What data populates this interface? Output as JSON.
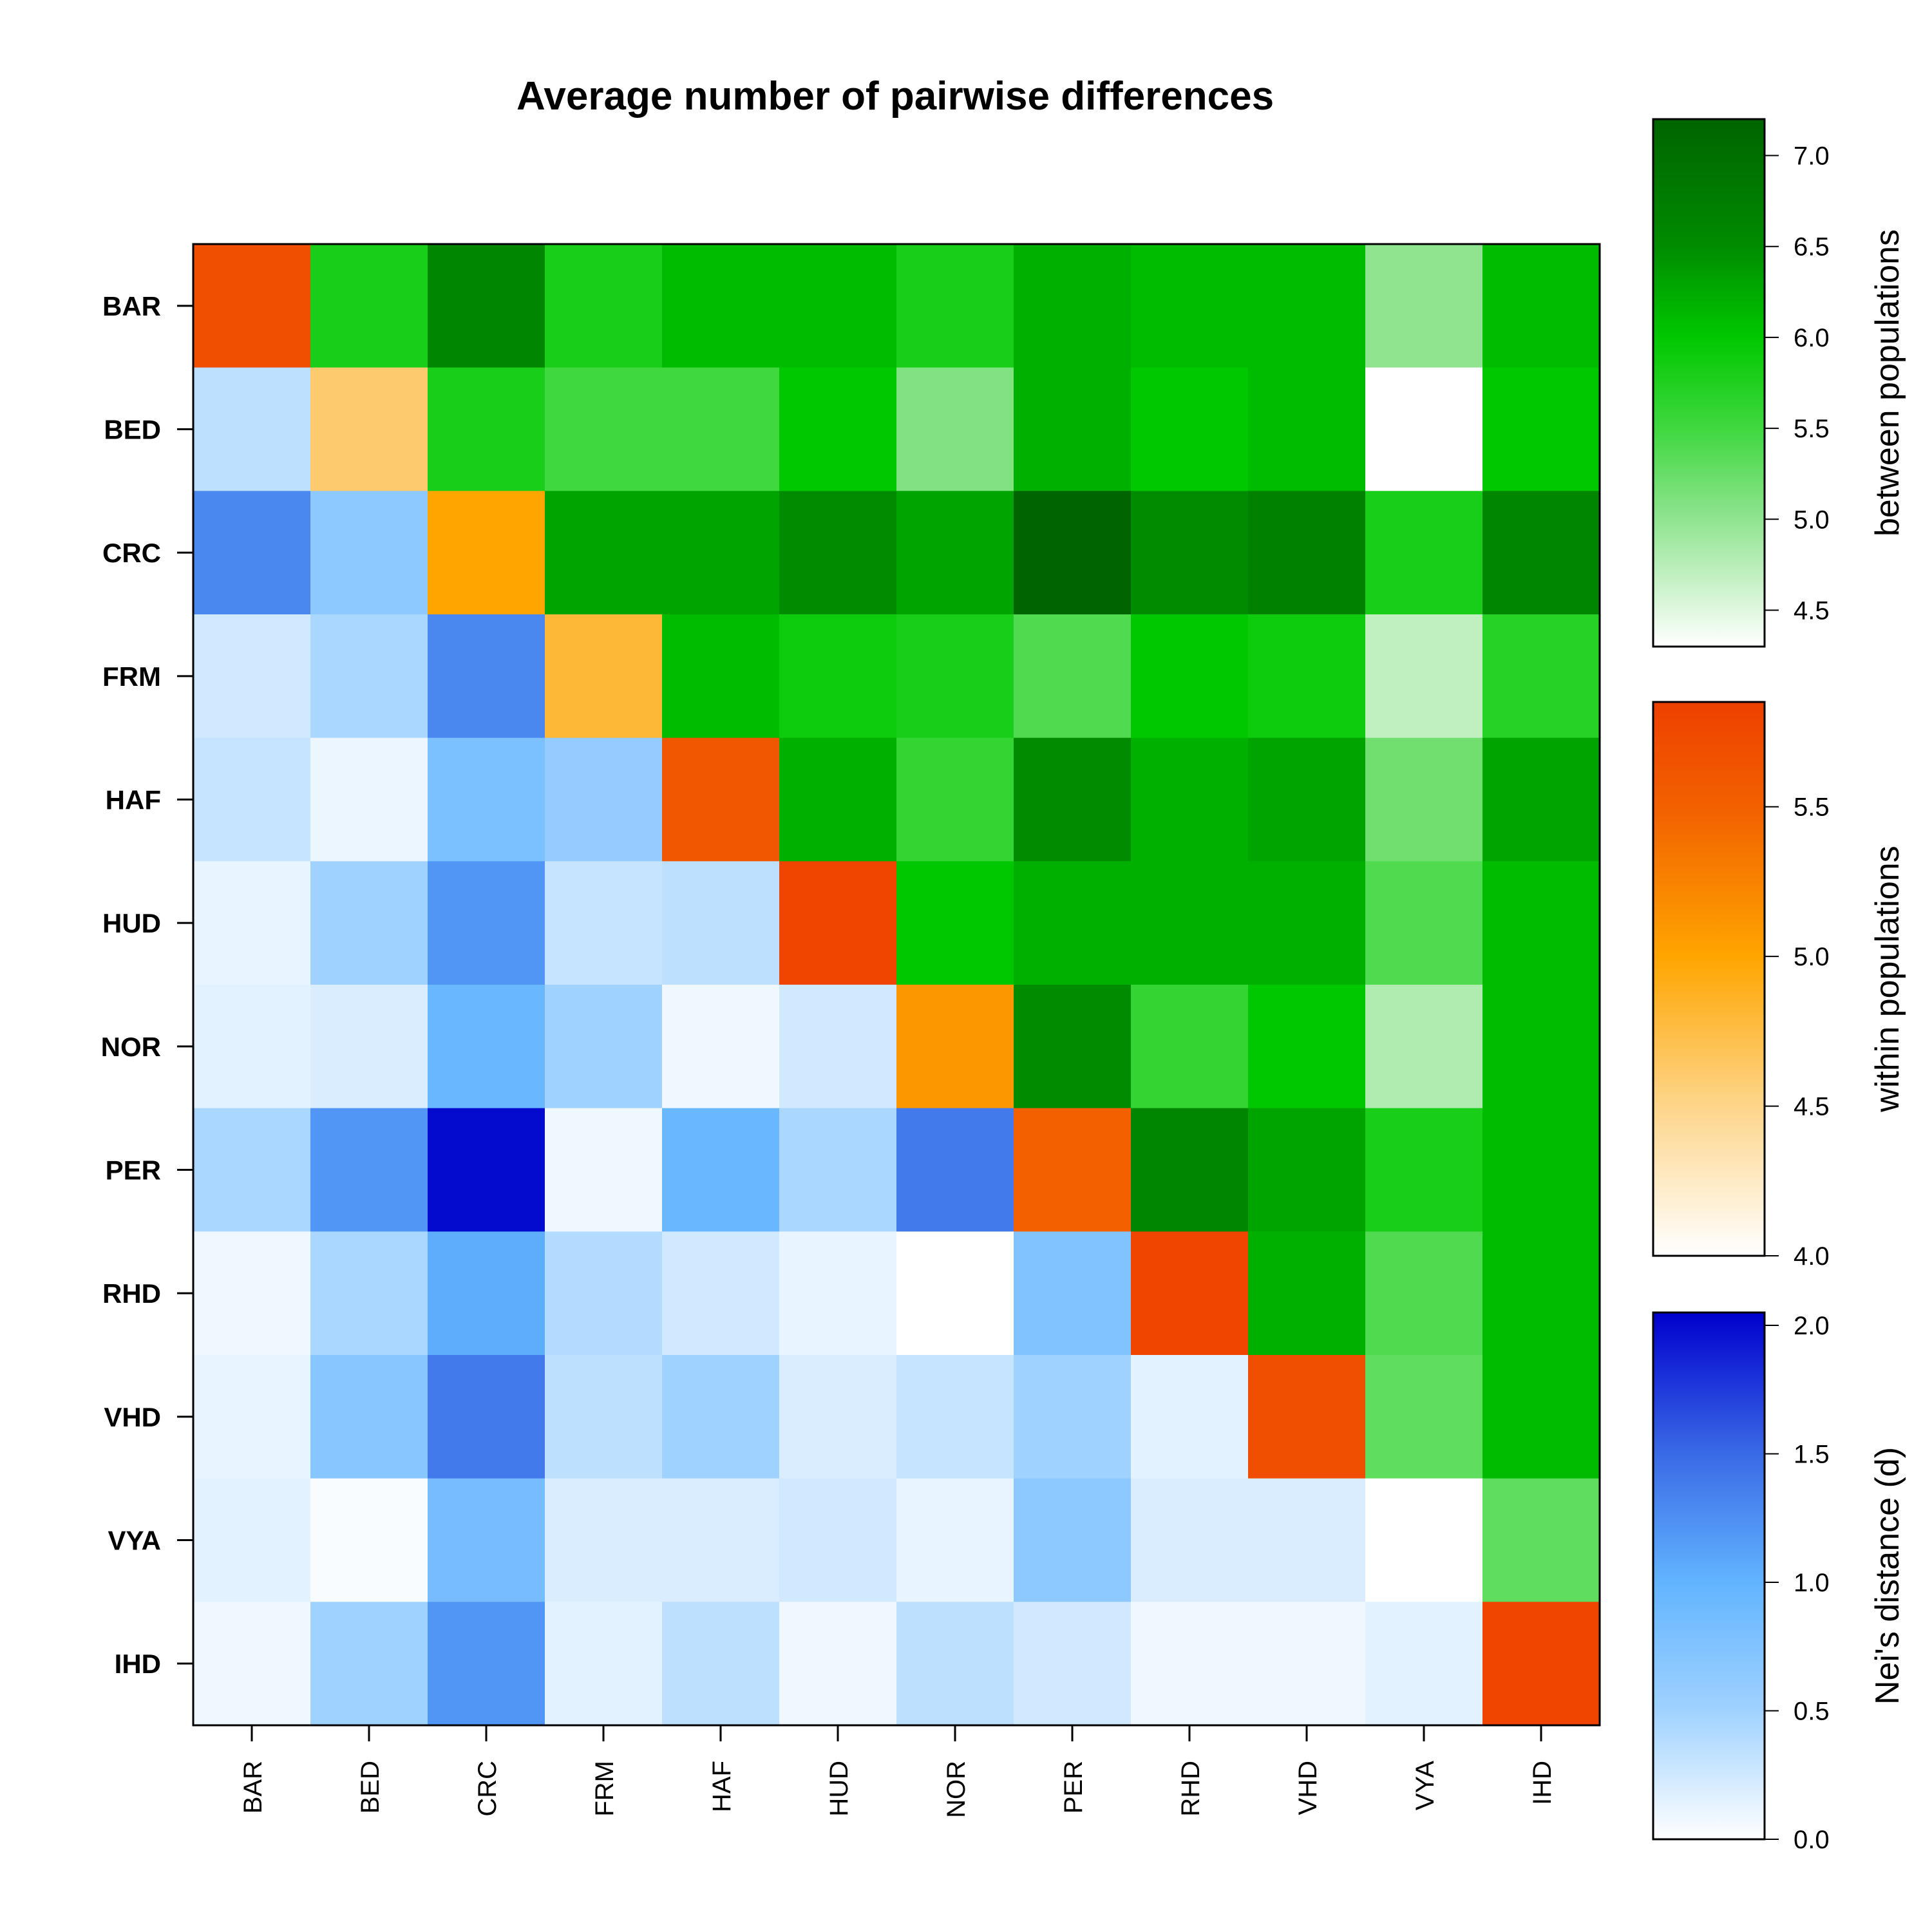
{
  "chart_data": {
    "type": "heatmap",
    "title": "Average number of pairwise differences",
    "row_labels": [
      "BAR",
      "BED",
      "CRC",
      "FRM",
      "HAF",
      "HUD",
      "NOR",
      "PER",
      "RHD",
      "VHD",
      "VYA",
      "IHD"
    ],
    "col_labels": [
      "BAR",
      "BED",
      "CRC",
      "FRM",
      "HAF",
      "HUD",
      "NOR",
      "PER",
      "RHD",
      "VHD",
      "VYA",
      "IHD"
    ],
    "cell_layout": "upper triangle = between populations, diagonal = within populations, lower triangle = Nei's distance (d)",
    "matrix": [
      [
        5.7,
        5.8,
        6.6,
        5.8,
        6.1,
        6.1,
        5.8,
        6.2,
        6.1,
        6.1,
        5.0,
        6.1
      ],
      [
        0.35,
        4.6,
        5.8,
        5.5,
        5.5,
        6.0,
        5.1,
        6.2,
        6.0,
        6.1,
        4.3,
        6.0
      ],
      [
        1.3,
        0.65,
        5.0,
        6.3,
        6.3,
        6.5,
        6.3,
        7.2,
        6.5,
        6.7,
        5.8,
        6.6
      ],
      [
        0.25,
        0.45,
        1.3,
        4.8,
        6.1,
        5.9,
        5.8,
        5.4,
        6.0,
        5.9,
        4.7,
        5.7
      ],
      [
        0.3,
        0.1,
        0.8,
        0.6,
        5.6,
        6.2,
        5.6,
        6.5,
        6.2,
        6.3,
        5.2,
        6.3
      ],
      [
        0.12,
        0.5,
        1.2,
        0.3,
        0.35,
        5.8,
        6.0,
        6.2,
        6.2,
        6.2,
        5.4,
        6.1
      ],
      [
        0.15,
        0.2,
        0.95,
        0.5,
        0.08,
        0.25,
        5.1,
        6.5,
        5.6,
        6.0,
        4.8,
        6.1
      ],
      [
        0.45,
        1.2,
        2.0,
        0.08,
        0.95,
        0.45,
        1.4,
        5.5,
        6.6,
        6.3,
        5.8,
        6.1
      ],
      [
        0.08,
        0.45,
        1.05,
        0.4,
        0.25,
        0.12,
        0.0,
        0.75,
        5.8,
        6.2,
        5.4,
        6.1
      ],
      [
        0.12,
        0.7,
        1.4,
        0.35,
        0.5,
        0.2,
        0.3,
        0.5,
        0.15,
        5.7,
        5.3,
        6.1
      ],
      [
        0.15,
        0.03,
        0.85,
        0.2,
        0.2,
        0.25,
        0.12,
        0.65,
        0.2,
        0.2,
        4.0,
        5.3
      ],
      [
        0.08,
        0.5,
        1.2,
        0.15,
        0.35,
        0.08,
        0.35,
        0.25,
        0.08,
        0.08,
        0.15,
        5.8
      ]
    ],
    "legends": [
      {
        "label": "between populations",
        "range": [
          4.3,
          7.2
        ],
        "ticks": [
          "7.0",
          "6.5",
          "6.0",
          "5.5",
          "5.0",
          "4.5"
        ],
        "tick_values": [
          7.0,
          6.5,
          6.0,
          5.5,
          5.0,
          4.5
        ],
        "colors": [
          [
            4.3,
            "#ffffff"
          ],
          [
            5.0,
            "#90e490"
          ],
          [
            5.5,
            "#3fd83f"
          ],
          [
            6.0,
            "#00c800"
          ],
          [
            6.5,
            "#008c00"
          ],
          [
            7.2,
            "#006400"
          ]
        ]
      },
      {
        "label": "within populations",
        "range": [
          4.0,
          5.85
        ],
        "ticks": [
          "5.5",
          "5.0",
          "4.5",
          "4.0"
        ],
        "tick_values": [
          5.5,
          5.0,
          4.5,
          4.0
        ],
        "colors": [
          [
            4.0,
            "#ffffff"
          ],
          [
            4.5,
            "#fdd58a"
          ],
          [
            5.0,
            "#ffa500"
          ],
          [
            5.5,
            "#f26000"
          ],
          [
            5.85,
            "#ee4000"
          ]
        ]
      },
      {
        "label": "Nei's distance (d)",
        "range": [
          0.0,
          2.05
        ],
        "ticks": [
          "2.0",
          "1.5",
          "1.0",
          "0.5",
          "0.0"
        ],
        "tick_values": [
          2.0,
          1.5,
          1.0,
          0.5,
          0.0
        ],
        "colors": [
          [
            0.0,
            "#ffffff"
          ],
          [
            0.5,
            "#a0d2ff"
          ],
          [
            1.0,
            "#62b4ff"
          ],
          [
            1.5,
            "#3a6ae6"
          ],
          [
            2.05,
            "#0000cd"
          ]
        ]
      }
    ],
    "grid": false
  }
}
